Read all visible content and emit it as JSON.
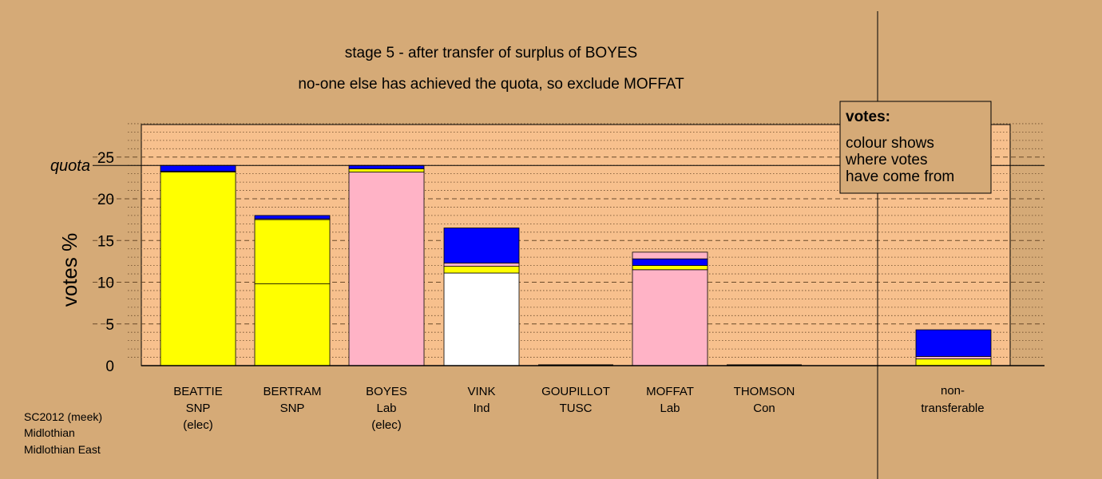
{
  "chart_data": {
    "type": "bar",
    "stacked": true,
    "title": "stage 5 - after transfer of surplus of BOYES",
    "subtitle": "no-one else has achieved the quota, so exclude MOFFAT",
    "ylabel": "votes %",
    "ylim": [
      0,
      29
    ],
    "yticks": [
      "0",
      "5",
      "10",
      "15",
      "20",
      "25"
    ],
    "quota": {
      "label": "quota",
      "value": 24.0
    },
    "categories": [
      {
        "name": "BEATTIE",
        "party": "SNP",
        "status": "(elec)"
      },
      {
        "name": "BERTRAM",
        "party": "SNP",
        "status": ""
      },
      {
        "name": "BOYES",
        "party": "Lab",
        "status": "(elec)"
      },
      {
        "name": "VINK",
        "party": "Ind",
        "status": ""
      },
      {
        "name": "GOUPILLOT",
        "party": "TUSC",
        "status": ""
      },
      {
        "name": "MOFFAT",
        "party": "Lab",
        "status": ""
      },
      {
        "name": "THOMSON",
        "party": "Con",
        "status": ""
      }
    ],
    "nontransferable": {
      "line1": "non-",
      "line2": "transferable"
    },
    "bars": [
      [
        {
          "value": 23.2,
          "color": "#ffff00"
        },
        {
          "value": 0.1,
          "color": "#ffb3c6"
        },
        {
          "value": 0.7,
          "color": "#0000ff"
        }
      ],
      [
        {
          "value": 9.8,
          "color": "#ffff00"
        },
        {
          "value": 7.7,
          "color": "#ffff00"
        },
        {
          "value": 0.1,
          "color": "#ffb3c6"
        },
        {
          "value": 0.4,
          "color": "#0000ff"
        }
      ],
      [
        {
          "value": 23.2,
          "color": "#ffb3c6"
        },
        {
          "value": 0.4,
          "color": "#ffff00"
        },
        {
          "value": 0.4,
          "color": "#0000ff"
        }
      ],
      [
        {
          "value": 11.1,
          "color": "#ffffff"
        },
        {
          "value": 0.8,
          "color": "#ffff00"
        },
        {
          "value": 0.4,
          "color": "#ffb3c6"
        },
        {
          "value": 4.2,
          "color": "#0000ff"
        }
      ],
      [],
      [
        {
          "value": 11.5,
          "color": "#ffb3c6"
        },
        {
          "value": 0.5,
          "color": "#ffff00"
        },
        {
          "value": 0.8,
          "color": "#0000ff"
        },
        {
          "value": 0.8,
          "color": "#ffb3c6"
        }
      ],
      [],
      [
        {
          "value": 0.8,
          "color": "#ffff00"
        },
        {
          "value": 0.3,
          "color": "#ffb3c6"
        },
        {
          "value": 3.2,
          "color": "#0000ff"
        }
      ]
    ],
    "legend": {
      "placement": "top-right",
      "title": "votes:",
      "lines": [
        "colour shows",
        "where votes",
        "have come from"
      ]
    },
    "colors": {
      "background": "#d5aa77",
      "plot": "#f7c08d",
      "snp": "#ffff00",
      "lab": "#ffb3c6",
      "other": "#0000ff",
      "ind": "#ffffff"
    }
  },
  "footer": {
    "line1": "SC2012 (meek)",
    "line2": "Midlothian",
    "line3": "Midlothian East"
  }
}
